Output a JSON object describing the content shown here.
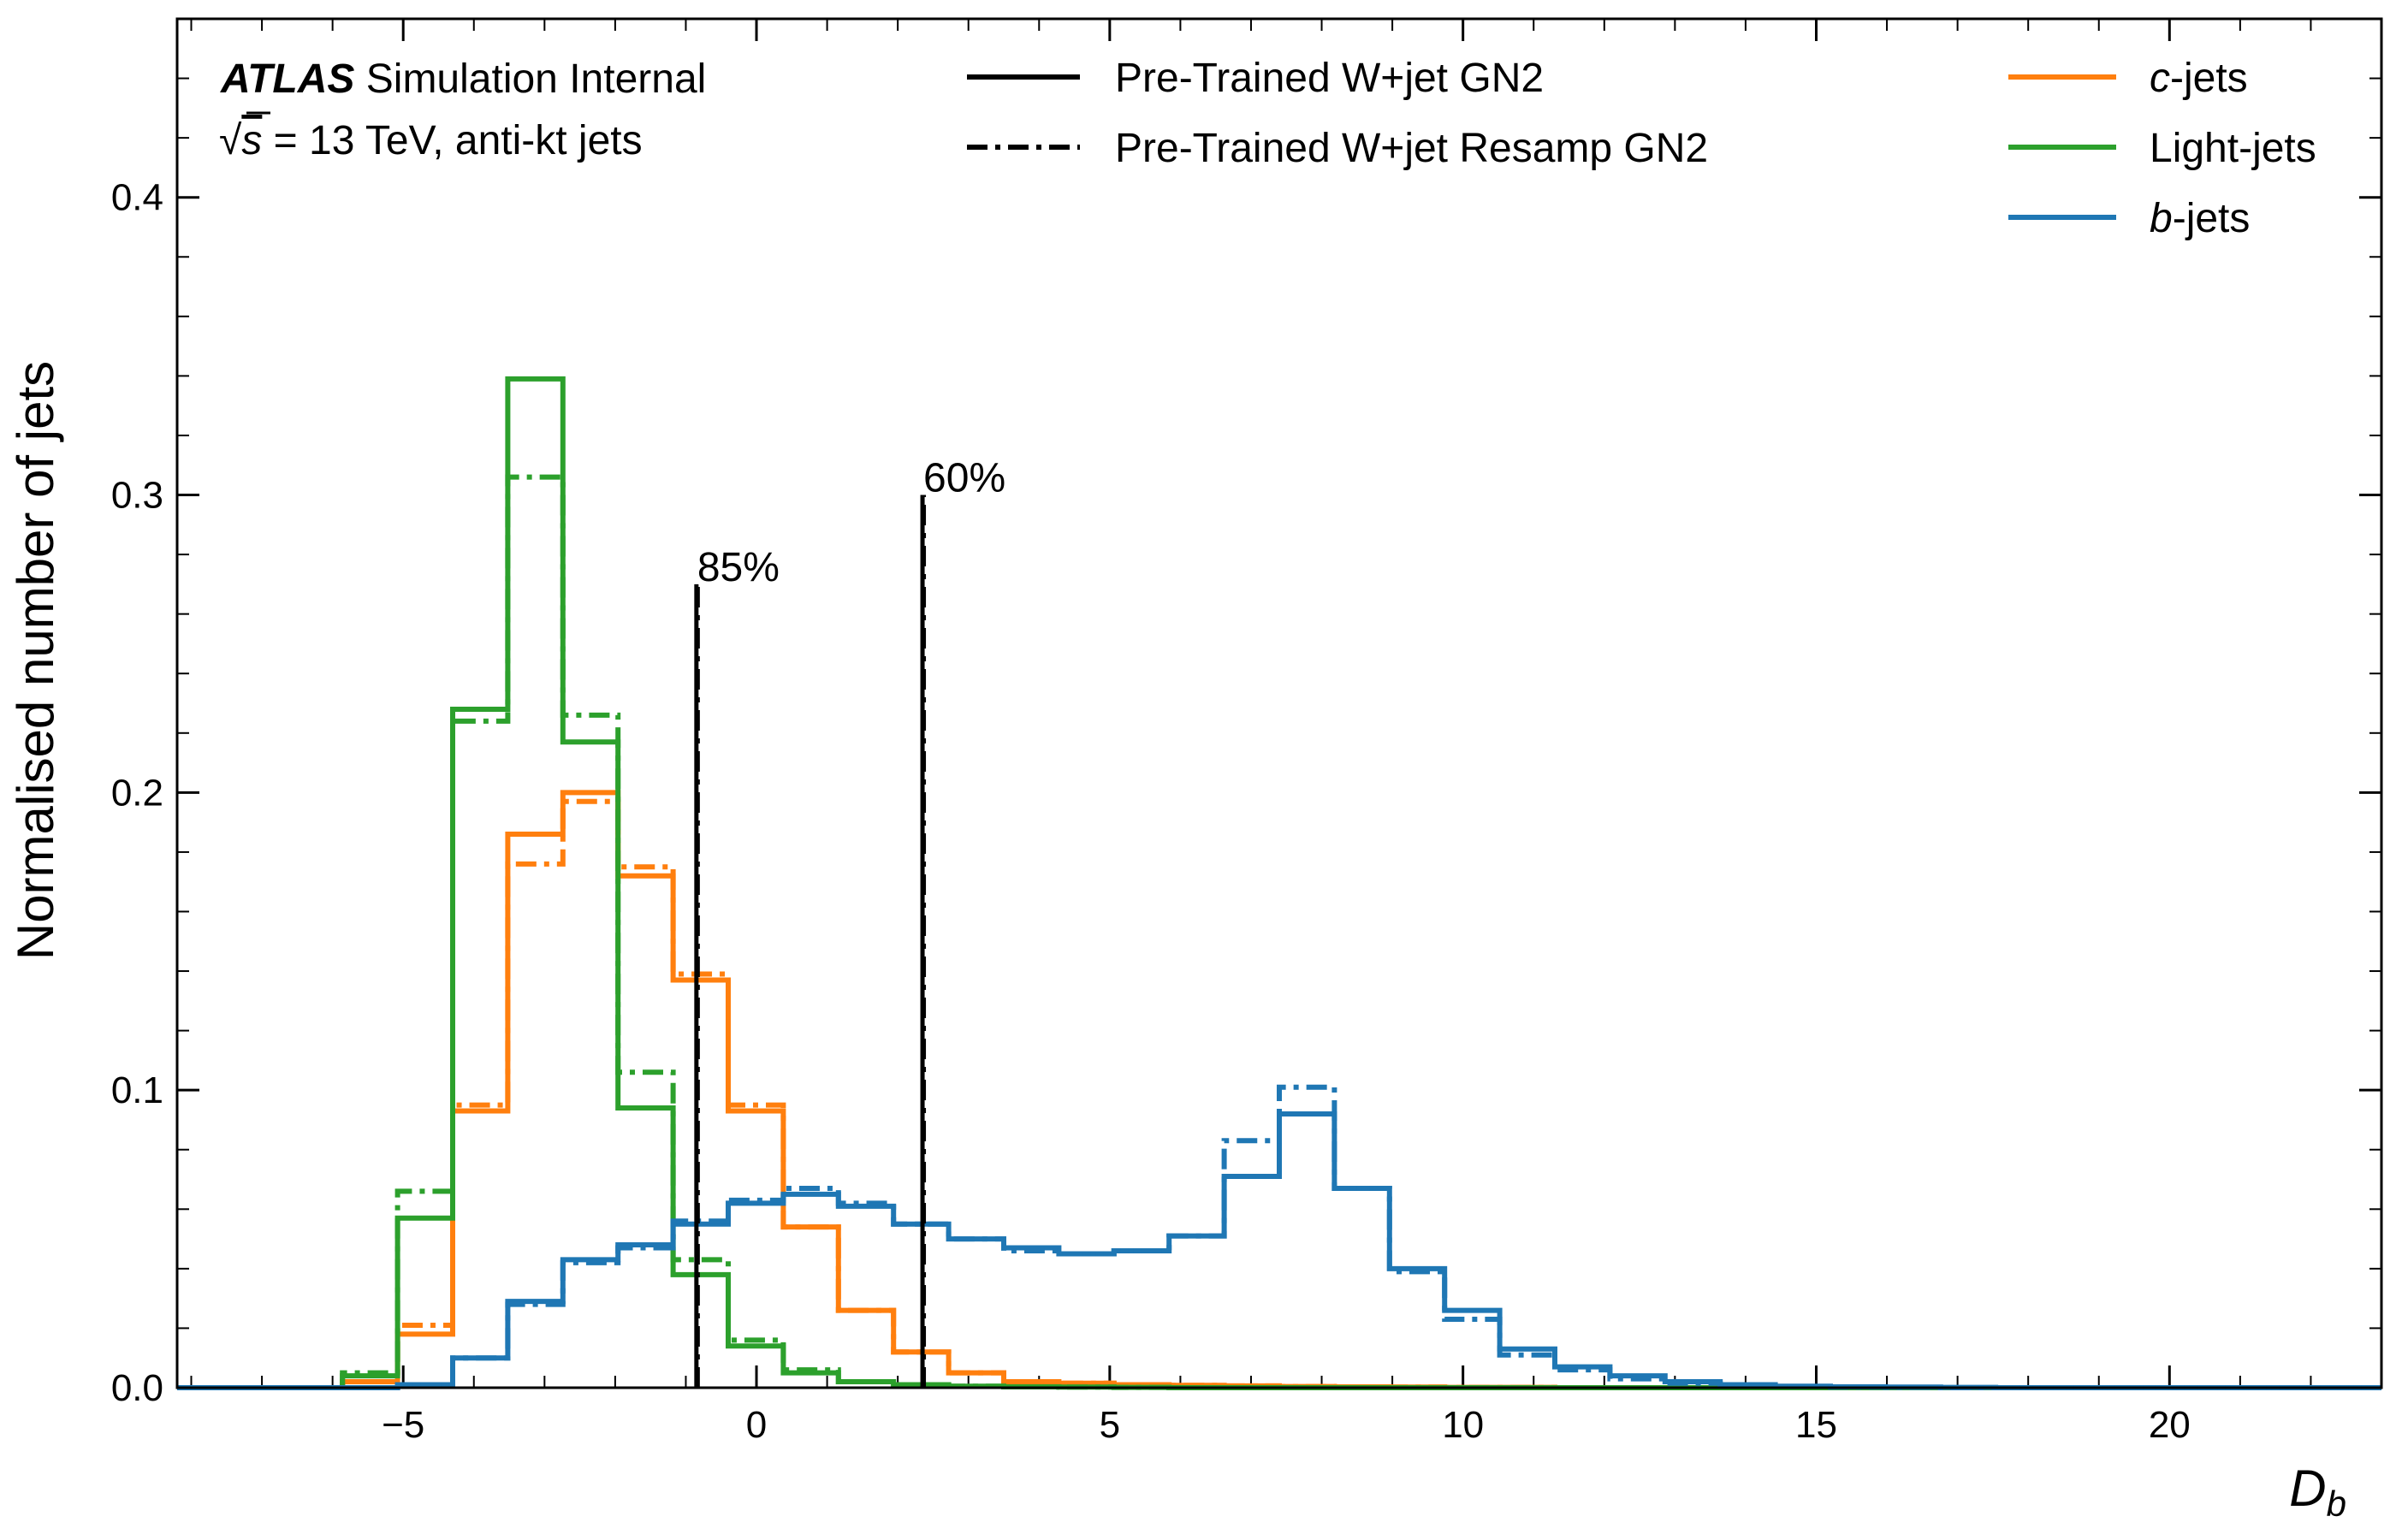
{
  "chart_data": {
    "type": "histogram",
    "xlabel": "D",
    "xlabel_sub": "b",
    "ylabel": "Normalised number of jets",
    "xlim": [
      -8.2,
      23.0
    ],
    "ylim": [
      0.0,
      0.46
    ],
    "x_ticks": [
      -5,
      0,
      5,
      10,
      15,
      20
    ],
    "x_tick_labels": [
      "−5",
      "0",
      "5",
      "10",
      "15",
      "20"
    ],
    "y_ticks": [
      0.0,
      0.1,
      0.2,
      0.3,
      0.4
    ],
    "y_tick_labels": [
      "0.0",
      "0.1",
      "0.2",
      "0.3",
      "0.4"
    ],
    "bin_edges": [
      -8.2,
      -7.42,
      -6.64,
      -5.86,
      -5.08,
      -4.3,
      -3.52,
      -2.74,
      -1.96,
      -1.18,
      -0.4,
      0.38,
      1.16,
      1.94,
      2.72,
      3.5,
      4.28,
      5.06,
      5.84,
      6.62,
      7.4,
      8.18,
      8.96,
      9.74,
      10.52,
      11.3,
      12.08,
      12.86,
      13.64,
      14.42,
      15.2,
      15.98,
      16.76,
      17.54,
      18.32,
      19.1,
      19.88,
      20.66,
      21.44,
      22.22,
      23.0
    ],
    "series": [
      {
        "flavour": "c",
        "style": "solid",
        "color": "#ff7f0e",
        "values": [
          0,
          0,
          0,
          0.002,
          0.018,
          0.093,
          0.186,
          0.2,
          0.172,
          0.137,
          0.093,
          0.054,
          0.026,
          0.012,
          0.005,
          0.002,
          0.0015,
          0.001,
          0.0008,
          0.0006,
          0.0004,
          0.0003,
          0.0002,
          0.0001,
          0.0001,
          0,
          0,
          0,
          0,
          0,
          0,
          0,
          0,
          0,
          0,
          0,
          0,
          0,
          0,
          0
        ]
      },
      {
        "flavour": "c",
        "style": "dashdot",
        "color": "#ff7f0e",
        "values": [
          0,
          0,
          0,
          0.002,
          0.021,
          0.095,
          0.176,
          0.197,
          0.175,
          0.139,
          0.095,
          0.054,
          0.026,
          0.012,
          0.005,
          0.002,
          0.0015,
          0.001,
          0.0008,
          0.0006,
          0.0004,
          0.0003,
          0.0002,
          0.0001,
          0.0001,
          0,
          0,
          0,
          0,
          0,
          0,
          0,
          0,
          0,
          0,
          0,
          0,
          0,
          0,
          0
        ]
      },
      {
        "flavour": "light",
        "style": "solid",
        "color": "#2ca02c",
        "values": [
          0,
          0,
          0,
          0.004,
          0.057,
          0.228,
          0.339,
          0.217,
          0.094,
          0.038,
          0.014,
          0.005,
          0.002,
          0.001,
          0.0005,
          0.0003,
          0.0002,
          0.0001,
          0,
          0,
          0,
          0,
          0,
          0,
          0,
          0,
          0,
          0,
          0,
          0,
          0,
          0,
          0,
          0,
          0,
          0,
          0,
          0,
          0,
          0
        ]
      },
      {
        "flavour": "light",
        "style": "dashdot",
        "color": "#2ca02c",
        "values": [
          0,
          0,
          0,
          0.005,
          0.066,
          0.224,
          0.306,
          0.226,
          0.106,
          0.043,
          0.016,
          0.006,
          0.002,
          0.001,
          0.0005,
          0.0003,
          0.0002,
          0.0001,
          0,
          0,
          0,
          0,
          0,
          0,
          0,
          0,
          0,
          0,
          0,
          0,
          0,
          0,
          0,
          0,
          0,
          0,
          0,
          0,
          0,
          0
        ]
      },
      {
        "flavour": "b",
        "style": "solid",
        "color": "#1f77b4",
        "values": [
          0,
          0,
          0,
          0,
          0.001,
          0.01,
          0.029,
          0.043,
          0.048,
          0.055,
          0.062,
          0.065,
          0.061,
          0.055,
          0.05,
          0.047,
          0.045,
          0.046,
          0.051,
          0.071,
          0.092,
          0.067,
          0.04,
          0.026,
          0.013,
          0.007,
          0.004,
          0.002,
          0.001,
          0.0005,
          0.0003,
          0.0002,
          0.0001,
          0,
          0,
          0,
          0,
          0,
          0,
          0
        ]
      },
      {
        "flavour": "b",
        "style": "dashdot",
        "color": "#1f77b4",
        "values": [
          0,
          0,
          0,
          0,
          0.001,
          0.01,
          0.028,
          0.042,
          0.047,
          0.056,
          0.063,
          0.067,
          0.062,
          0.055,
          0.05,
          0.046,
          0.045,
          0.046,
          0.051,
          0.083,
          0.101,
          0.067,
          0.039,
          0.023,
          0.011,
          0.006,
          0.003,
          0.0015,
          0.0008,
          0.0004,
          0.0002,
          0.0001,
          0,
          0,
          0,
          0,
          0,
          0,
          0,
          0
        ]
      }
    ],
    "working_points": [
      {
        "label": "85%",
        "x": -0.85,
        "ymax": 0.27
      },
      {
        "label": "60%",
        "x": 2.35,
        "ymax": 0.3
      }
    ],
    "legend_styles": [
      {
        "label": "Pre-Trained W+jet GN2",
        "style": "solid"
      },
      {
        "label": "Pre-Trained W+jet Resamp GN2",
        "style": "dashdot"
      }
    ],
    "legend_flavours": [
      {
        "italic": "c",
        "suffix": "-jets",
        "color": "#ff7f0e"
      },
      {
        "italic": "",
        "suffix": "Light-jets",
        "color": "#2ca02c"
      },
      {
        "italic": "b",
        "suffix": "-jets",
        "color": "#1f77b4"
      }
    ],
    "atlas_label": "ATLAS",
    "atlas_suffix": " Simulation Internal",
    "energy_label_sqrt": "√",
    "energy_label_s": "s",
    "energy_label_rest": " = 13 TeV, anti-kt jets"
  }
}
